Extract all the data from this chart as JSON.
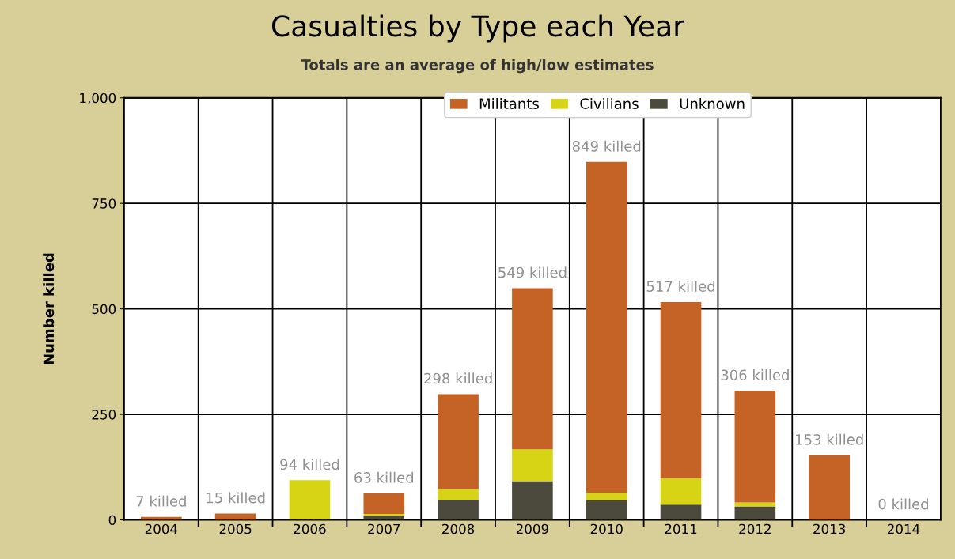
{
  "chart_data": {
    "type": "bar",
    "stacked": true,
    "title": "Casualties by Type each Year",
    "subtitle": "Totals are an average of high/low estimates",
    "ylabel": "Number killed",
    "categories": [
      "2004",
      "2005",
      "2006",
      "2007",
      "2008",
      "2009",
      "2010",
      "2011",
      "2012",
      "2013",
      "2014"
    ],
    "series": [
      {
        "name": "Unknown",
        "color": "#4b4a3c",
        "values": [
          0,
          0,
          2,
          10,
          48,
          92,
          47,
          36,
          32,
          0,
          0
        ]
      },
      {
        "name": "Civilians",
        "color": "#d6d414",
        "values": [
          0,
          0,
          92,
          4,
          25,
          75,
          17,
          63,
          9,
          0,
          0
        ]
      },
      {
        "name": "Militants",
        "color": "#c56226",
        "values": [
          7,
          15,
          0,
          49,
          225,
          382,
          784,
          417,
          265,
          153,
          0
        ]
      }
    ],
    "totals": [
      "7 killed",
      "15 killed",
      "94 killed",
      "63 killed",
      "298 killed",
      "549 killed",
      "849 killed",
      "517 killed",
      "306 killed",
      "153 killed",
      "0 killed"
    ],
    "ylim": [
      0,
      1000
    ],
    "yticks": [
      0,
      250,
      500,
      750,
      {
        "value": 1000,
        "label": "1,000"
      }
    ],
    "grid": true,
    "legend": "top"
  }
}
